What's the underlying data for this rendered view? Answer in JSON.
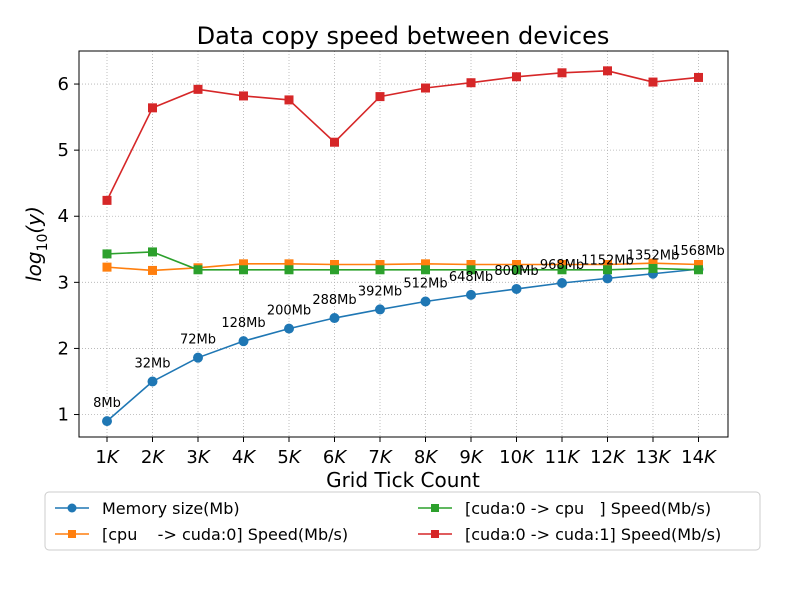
{
  "chart_data": {
    "type": "line",
    "title": "Data copy speed between devices",
    "xlabel": "Grid Tick Count",
    "ylabel": "log10(y)",
    "ylabel_base": "log",
    "ylabel_sub": "10",
    "ylabel_arg": "(y)",
    "categories": [
      "1K",
      "2K",
      "3K",
      "4K",
      "5K",
      "6K",
      "7K",
      "8K",
      "9K",
      "10K",
      "11K",
      "12K",
      "13K",
      "14K"
    ],
    "category_labels": [
      {
        "num": "1",
        "unit": "K"
      },
      {
        "num": "2",
        "unit": "K"
      },
      {
        "num": "3",
        "unit": "K"
      },
      {
        "num": "4",
        "unit": "K"
      },
      {
        "num": "5",
        "unit": "K"
      },
      {
        "num": "6",
        "unit": "K"
      },
      {
        "num": "7",
        "unit": "K"
      },
      {
        "num": "8",
        "unit": "K"
      },
      {
        "num": "9",
        "unit": "K"
      },
      {
        "num": "10",
        "unit": "K"
      },
      {
        "num": "11",
        "unit": "K"
      },
      {
        "num": "12",
        "unit": "K"
      },
      {
        "num": "13",
        "unit": "K"
      },
      {
        "num": "14",
        "unit": "K"
      }
    ],
    "ylim": [
      0.66,
      6.5
    ],
    "yticks": [
      1,
      2,
      3,
      4,
      5,
      6
    ],
    "grid": true,
    "legend_position": "below, two columns",
    "series": [
      {
        "name": "Memory size(Mb)",
        "color": "#1f77b4",
        "marker": "circle",
        "values": [
          0.9,
          1.5,
          1.86,
          2.11,
          2.3,
          2.46,
          2.59,
          2.71,
          2.81,
          2.9,
          2.99,
          3.06,
          3.13,
          3.2
        ],
        "annotations": [
          "8Mb",
          "32Mb",
          "72Mb",
          "128Mb",
          "200Mb",
          "288Mb",
          "392Mb",
          "512Mb",
          "648Mb",
          "800Mb",
          "968Mb",
          "1152Mb",
          "1352Mb",
          "1568Mb"
        ]
      },
      {
        "name": "[cpu    -> cuda:0] Speed(Mb/s)",
        "color": "#ff7f0e",
        "marker": "square",
        "values": [
          3.23,
          3.18,
          3.22,
          3.28,
          3.28,
          3.27,
          3.27,
          3.28,
          3.27,
          3.27,
          3.27,
          3.27,
          3.29,
          3.27
        ]
      },
      {
        "name": "[cuda:0 -> cpu   ] Speed(Mb/s)",
        "color": "#2ca02c",
        "marker": "square",
        "values": [
          3.43,
          3.46,
          3.19,
          3.19,
          3.19,
          3.19,
          3.19,
          3.19,
          3.19,
          3.19,
          3.19,
          3.19,
          3.21,
          3.19
        ]
      },
      {
        "name": "[cuda:0 -> cuda:1] Speed(Mb/s)",
        "color": "#d62728",
        "marker": "square",
        "values": [
          4.24,
          5.64,
          5.92,
          5.82,
          5.76,
          5.12,
          5.81,
          5.94,
          6.02,
          6.11,
          6.17,
          6.2,
          6.03,
          6.1
        ]
      }
    ]
  }
}
